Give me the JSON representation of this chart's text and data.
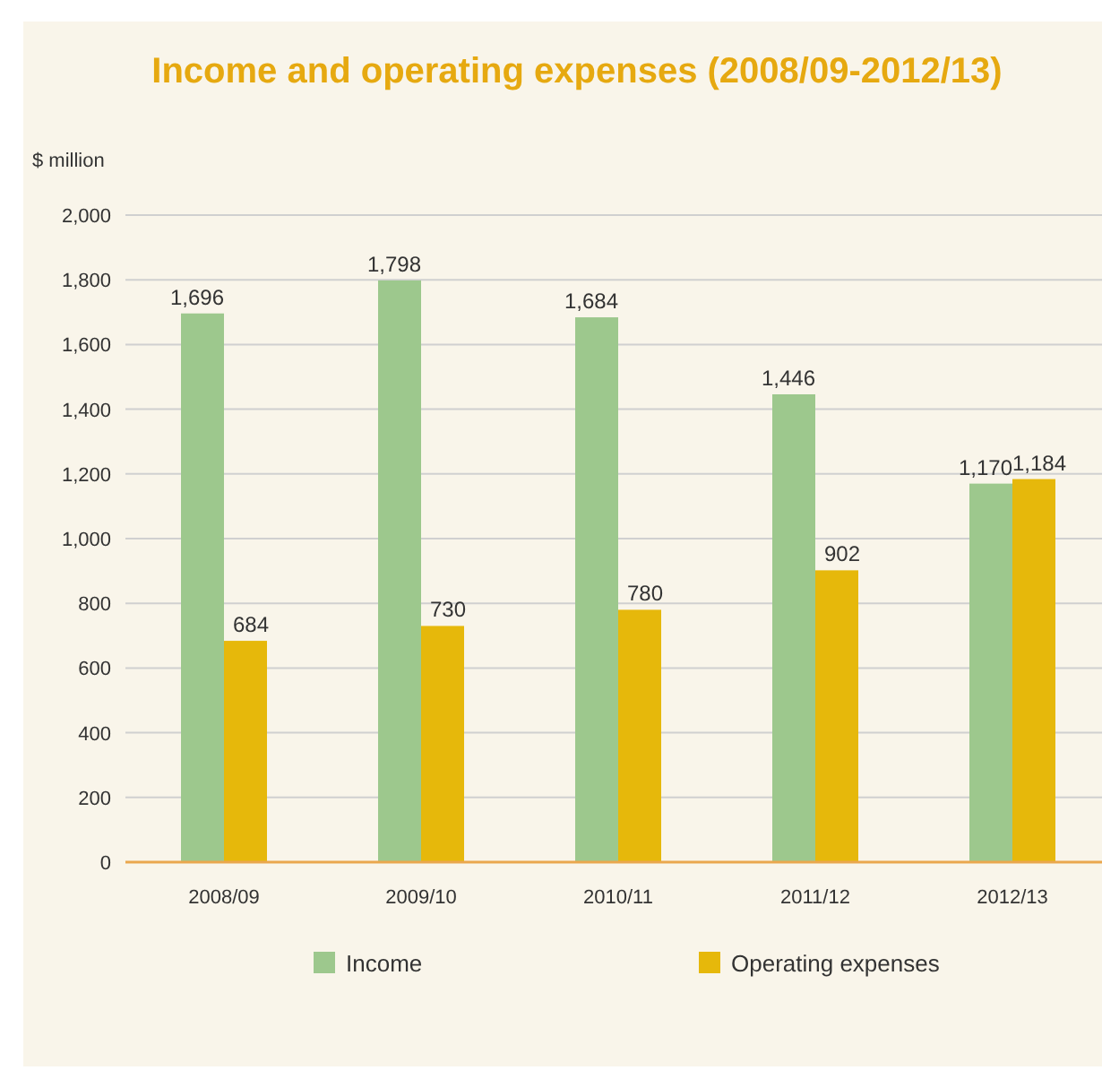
{
  "chart_data": {
    "type": "bar",
    "title": "Income and operating expenses (2008/09-2012/13)",
    "ylabel": "$ million",
    "categories": [
      "2008/09",
      "2009/10",
      "2010/11",
      "2011/12",
      "2012/13"
    ],
    "series": [
      {
        "name": "Income",
        "color": "#9dc88d",
        "values": [
          1696,
          1798,
          1684,
          1446,
          1170
        ],
        "value_labels": [
          "1,696",
          "1,798",
          "1,684",
          "1,446",
          "1,170"
        ]
      },
      {
        "name": "Operating expenses",
        "color": "#e6b80b",
        "values": [
          684,
          730,
          780,
          902,
          1184
        ],
        "value_labels": [
          "684",
          "730",
          "780",
          "902",
          "1,184"
        ]
      }
    ],
    "ylim": [
      0,
      2000
    ],
    "yticks": [
      {
        "value": 0,
        "label": "0"
      },
      {
        "value": 200,
        "label": "200"
      },
      {
        "value": 400,
        "label": "400"
      },
      {
        "value": 600,
        "label": "600"
      },
      {
        "value": 800,
        "label": "800"
      },
      {
        "value": 1000,
        "label": "1,000"
      },
      {
        "value": 1200,
        "label": "1,200"
      },
      {
        "value": 1400,
        "label": "1,400"
      },
      {
        "value": 1600,
        "label": "1,600"
      },
      {
        "value": 1800,
        "label": "1,800"
      },
      {
        "value": 2000,
        "label": "2,000"
      }
    ],
    "grid": "y",
    "legend": "bottom"
  }
}
